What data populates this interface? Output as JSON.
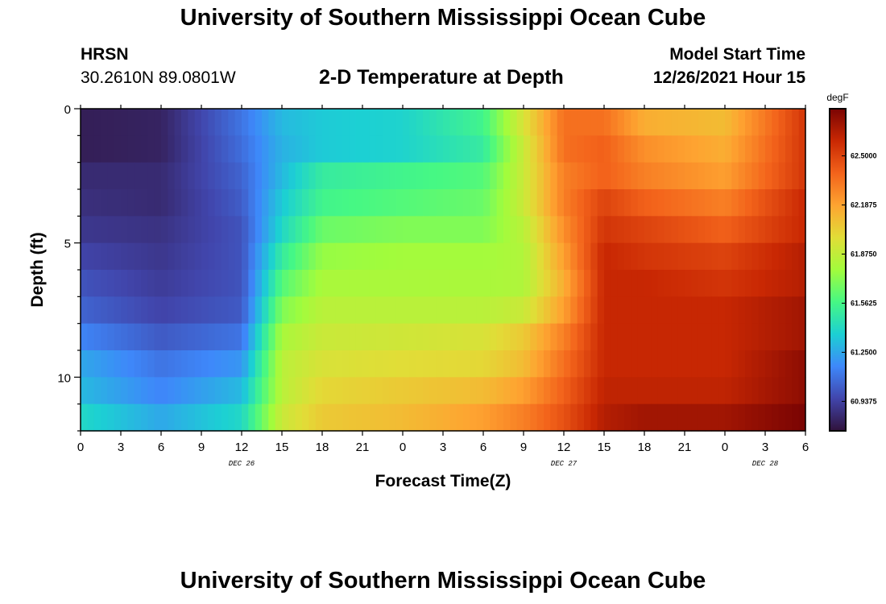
{
  "header": {
    "title": "University of Southern Mississippi Ocean Cube",
    "station": "HRSN",
    "coords": "30.2610N  89.0801W",
    "subtitle": "2-D Temperature at Depth",
    "start_label": "Model Start Time",
    "start_value": "12/26/2021 Hour 15"
  },
  "footer": {
    "title": "University of Southern Mississippi Ocean Cube"
  },
  "chart_data": {
    "type": "heatmap",
    "title": "2-D Temperature at Depth",
    "xlabel": "Forecast Time(Z)",
    "ylabel": "Depth (ft)",
    "x_unit": "hours since Dec 26 00Z",
    "xlim": [
      0,
      54
    ],
    "ylim": [
      0,
      12
    ],
    "x_ticks": [
      {
        "value": 0,
        "label": "0"
      },
      {
        "value": 3,
        "label": "3"
      },
      {
        "value": 6,
        "label": "6"
      },
      {
        "value": 9,
        "label": "9"
      },
      {
        "value": 12,
        "label": "12"
      },
      {
        "value": 15,
        "label": "15"
      },
      {
        "value": 18,
        "label": "18"
      },
      {
        "value": 21,
        "label": "21"
      },
      {
        "value": 24,
        "label": "0"
      },
      {
        "value": 27,
        "label": "3"
      },
      {
        "value": 30,
        "label": "6"
      },
      {
        "value": 33,
        "label": "9"
      },
      {
        "value": 36,
        "label": "12"
      },
      {
        "value": 39,
        "label": "15"
      },
      {
        "value": 42,
        "label": "18"
      },
      {
        "value": 45,
        "label": "21"
      },
      {
        "value": 48,
        "label": "0"
      },
      {
        "value": 51,
        "label": "3"
      },
      {
        "value": 54,
        "label": "6"
      }
    ],
    "y_ticks": [
      {
        "value": 0,
        "label": "0"
      },
      {
        "value": 5,
        "label": "5"
      },
      {
        "value": 10,
        "label": "10"
      }
    ],
    "date_labels": [
      {
        "value": 12,
        "label": "DEC 26"
      },
      {
        "value": 36,
        "label": "DEC 27"
      },
      {
        "value": 51,
        "label": "DEC 28"
      }
    ],
    "depth_levels_ft": [
      0.5,
      1.5,
      2.5,
      3.5,
      4.5,
      5.5,
      6.5,
      7.5,
      8.5,
      9.5,
      10.5,
      11.5
    ],
    "time_breakpoints_h": [
      0,
      6,
      12,
      15,
      18,
      24,
      30,
      33,
      36,
      39,
      42,
      48,
      54
    ],
    "temperature_degF_by_depth": [
      [
        60.8,
        60.82,
        61.1,
        61.3,
        61.35,
        61.38,
        61.55,
        61.95,
        62.35,
        62.35,
        62.15,
        62.1,
        62.55
      ],
      [
        60.8,
        60.82,
        61.08,
        61.28,
        61.35,
        61.38,
        61.5,
        61.9,
        62.35,
        62.4,
        62.25,
        62.15,
        62.55
      ],
      [
        60.85,
        60.85,
        61.05,
        61.3,
        61.5,
        61.55,
        61.6,
        61.9,
        62.3,
        62.4,
        62.3,
        62.2,
        62.55
      ],
      [
        60.87,
        60.85,
        61.03,
        61.35,
        61.55,
        61.6,
        61.65,
        61.9,
        62.3,
        62.5,
        62.4,
        62.3,
        62.6
      ],
      [
        60.9,
        60.88,
        61.0,
        61.4,
        61.65,
        61.7,
        61.7,
        61.85,
        62.25,
        62.55,
        62.5,
        62.4,
        62.6
      ],
      [
        60.95,
        60.9,
        61.0,
        61.5,
        61.75,
        61.78,
        61.78,
        61.82,
        62.2,
        62.6,
        62.55,
        62.5,
        62.65
      ],
      [
        61.0,
        60.92,
        61.0,
        61.6,
        61.8,
        61.8,
        61.8,
        61.82,
        62.15,
        62.6,
        62.6,
        62.55,
        62.65
      ],
      [
        61.05,
        60.95,
        61.02,
        61.7,
        61.85,
        61.85,
        61.85,
        61.9,
        62.2,
        62.6,
        62.6,
        62.6,
        62.7
      ],
      [
        61.15,
        61.02,
        61.1,
        61.8,
        61.9,
        61.92,
        61.95,
        62.05,
        62.3,
        62.6,
        62.6,
        62.6,
        62.7
      ],
      [
        61.25,
        61.1,
        61.2,
        61.85,
        61.95,
        61.98,
        62.0,
        62.1,
        62.35,
        62.6,
        62.6,
        62.6,
        62.75
      ],
      [
        61.3,
        61.15,
        61.3,
        61.85,
        62.0,
        62.05,
        62.1,
        62.2,
        62.4,
        62.62,
        62.62,
        62.62,
        62.75
      ],
      [
        61.4,
        61.25,
        61.4,
        61.9,
        62.05,
        62.1,
        62.2,
        62.3,
        62.45,
        62.65,
        62.7,
        62.7,
        62.8
      ]
    ],
    "colorbar": {
      "unit": "degF",
      "min": 60.75,
      "max": 62.8,
      "tick_values": [
        62.5,
        62.1875,
        61.875,
        61.5625,
        61.25,
        60.9375
      ],
      "tick_labels": [
        "62.5000",
        "62.1875",
        "61.8750",
        "61.5625",
        "61.2500",
        "60.9375"
      ],
      "colors": [
        "#30123b",
        "#4145ab",
        "#3e88fa",
        "#1cd0d3",
        "#46f884",
        "#a2fc3c",
        "#e1dd37",
        "#fea431",
        "#f3631b",
        "#c92803",
        "#7a0403"
      ]
    }
  }
}
